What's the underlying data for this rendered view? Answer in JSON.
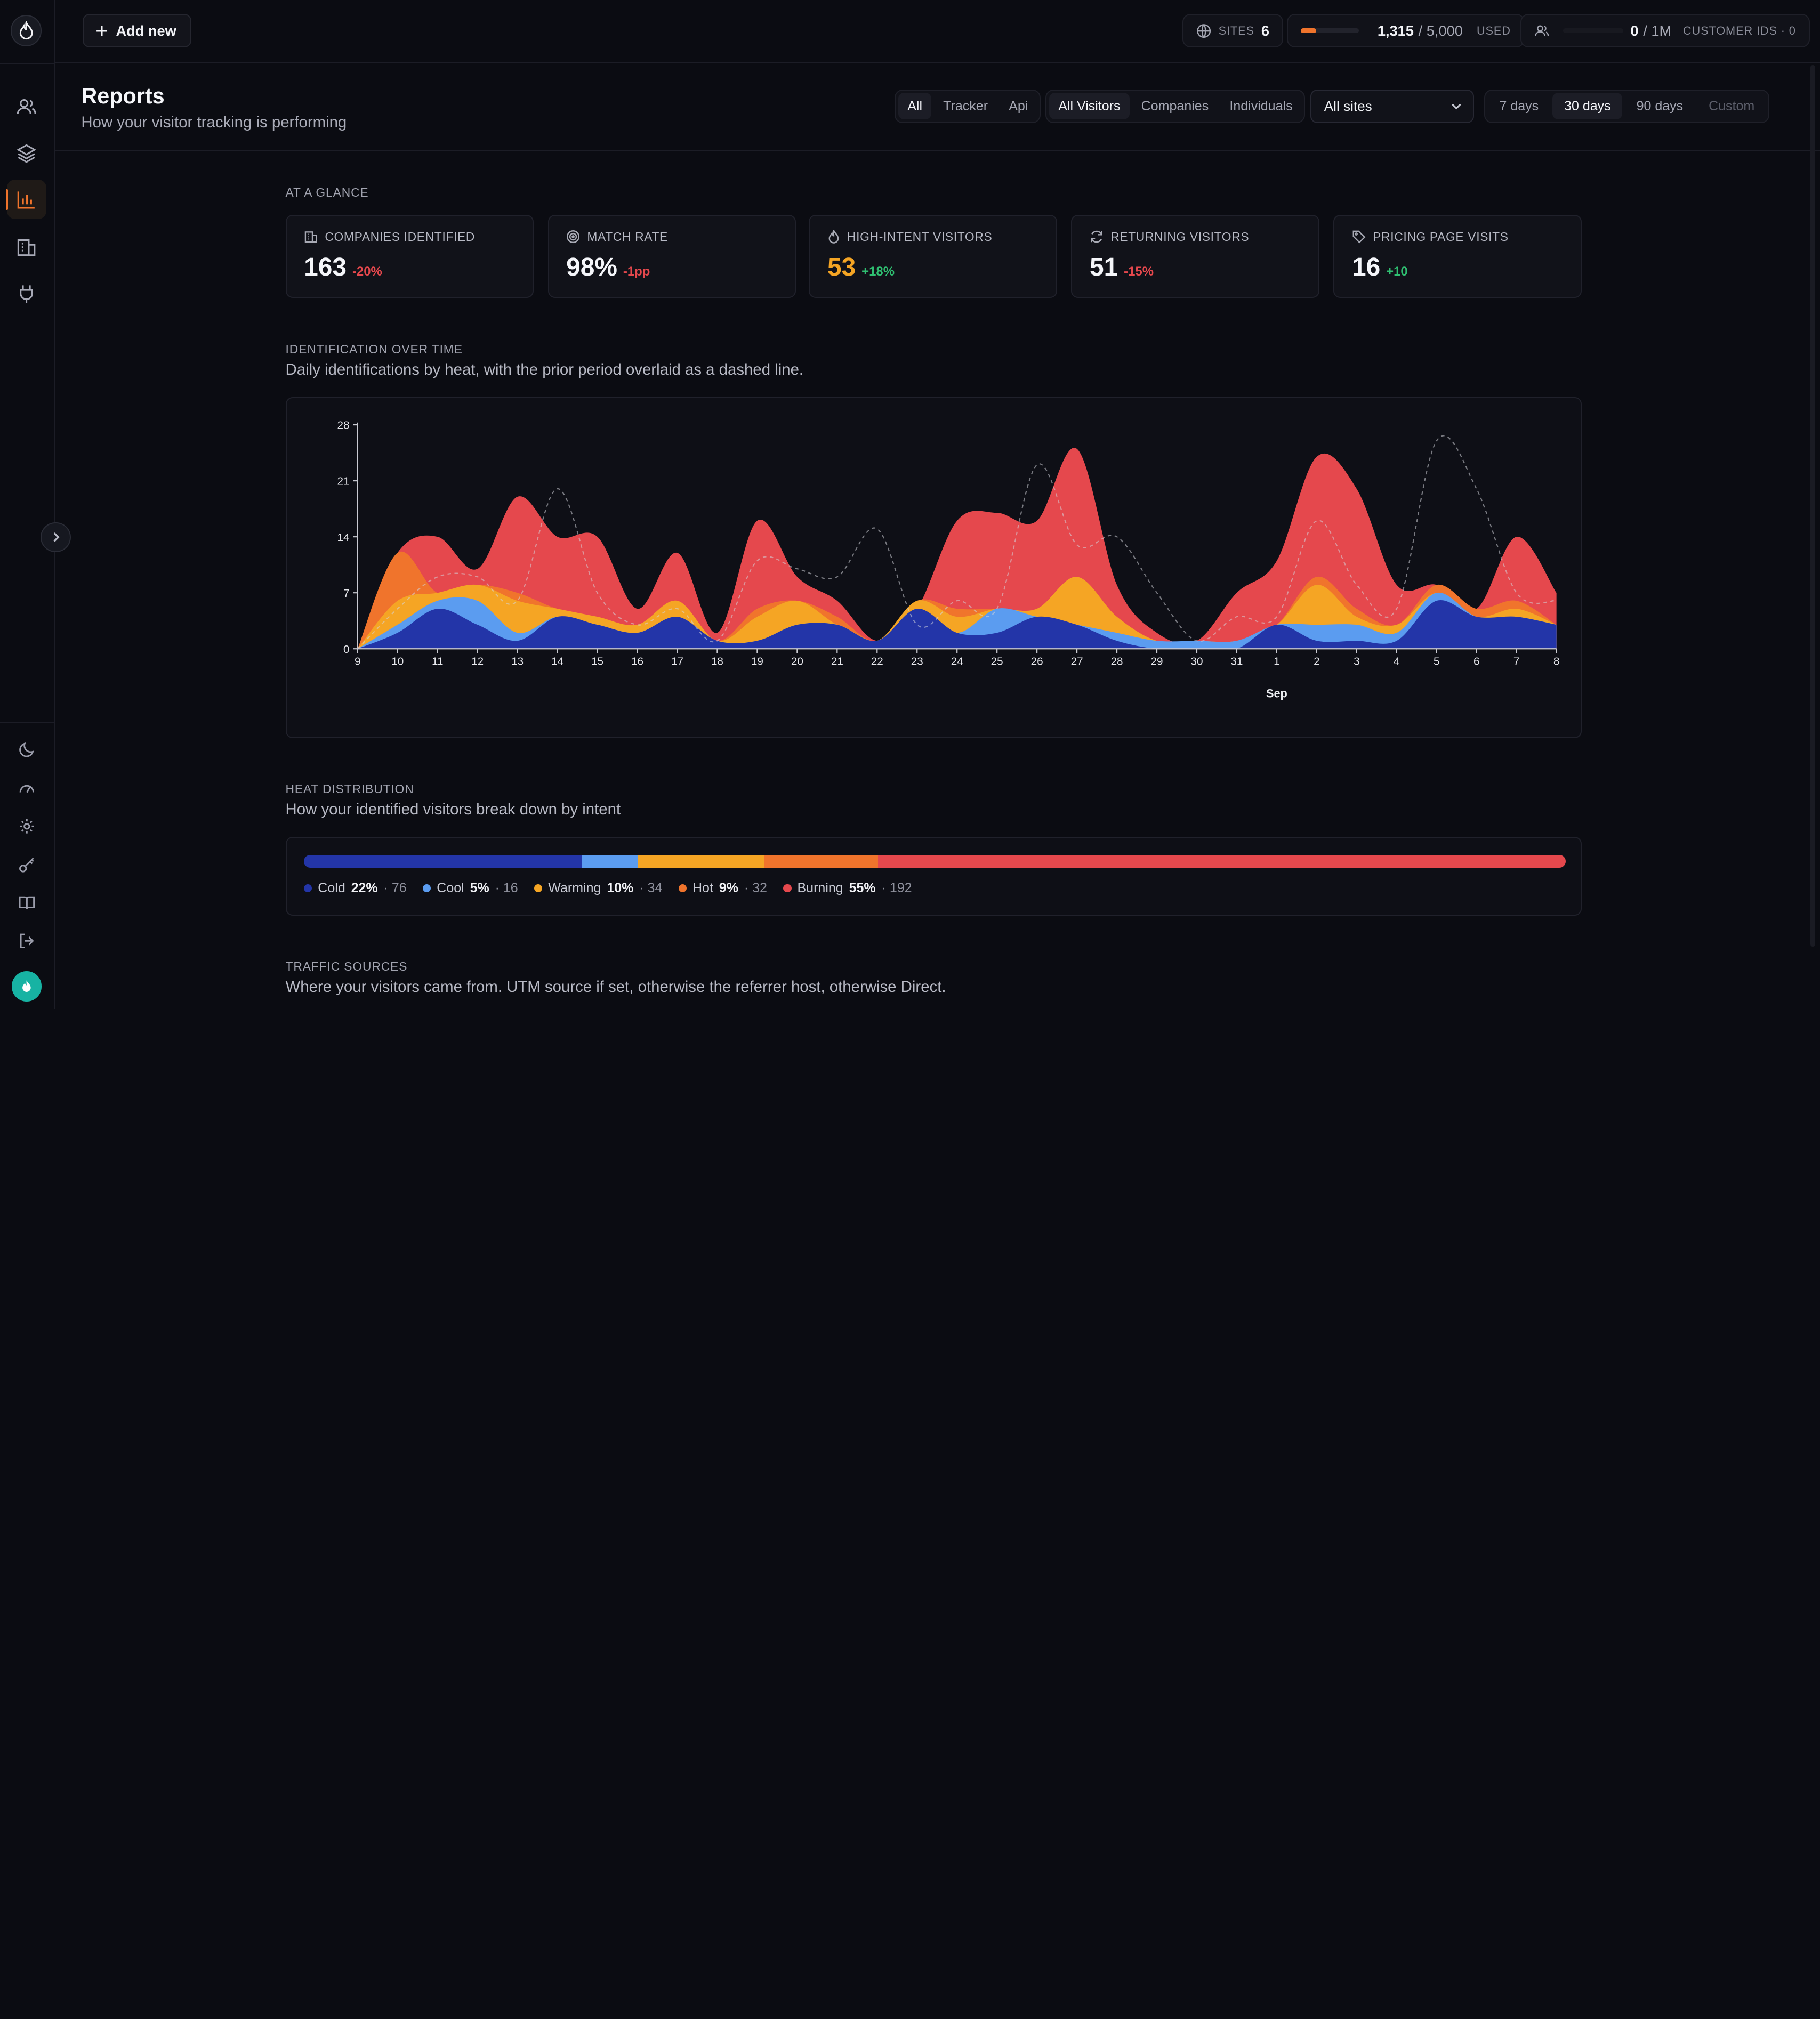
{
  "topbar": {
    "add_new": "Add new",
    "sites_label": "SITES",
    "sites_count": "6",
    "usage_used": "1,315",
    "usage_total": "/ 5,000",
    "usage_label": "USED",
    "usage_fraction": 0.263,
    "customers_used": "0",
    "customers_total": "/ 1M",
    "customers_label": "CUSTOMER IDS · 0"
  },
  "header": {
    "title": "Reports",
    "subtitle": "How your visitor tracking is performing",
    "source_filters": [
      "All",
      "Tracker",
      "Api"
    ],
    "source_active": "All",
    "audience_filters": [
      "All Visitors",
      "Companies",
      "Individuals"
    ],
    "audience_active": "All Visitors",
    "site_select": "All sites",
    "range_filters": [
      "7 days",
      "30 days",
      "90 days",
      "Custom"
    ],
    "range_active": "30 days"
  },
  "glance": {
    "label": "AT A GLANCE",
    "kpis": [
      {
        "label": "COMPANIES IDENTIFIED",
        "value": "163",
        "delta": "-20%",
        "trend": "neg",
        "icon": "building-icon"
      },
      {
        "label": "MATCH RATE",
        "value": "98%",
        "delta": "-1pp",
        "trend": "neg",
        "icon": "target-icon"
      },
      {
        "label": "HIGH-INTENT VISITORS",
        "value": "53",
        "delta": "+18%",
        "trend": "pos",
        "icon": "flame-icon"
      },
      {
        "label": "RETURNING VISITORS",
        "value": "51",
        "delta": "-15%",
        "trend": "neg",
        "icon": "refresh-icon"
      },
      {
        "label": "PRICING PAGE VISITS",
        "value": "16",
        "delta": "+10",
        "trend": "pos",
        "icon": "tag-icon"
      }
    ]
  },
  "identification": {
    "label": "IDENTIFICATION OVER TIME",
    "description": "Daily identifications by heat, with the prior period overlaid as a dashed line."
  },
  "chart_data": {
    "type": "area",
    "x": [
      "9",
      "10",
      "11",
      "12",
      "13",
      "14",
      "15",
      "16",
      "17",
      "18",
      "19",
      "20",
      "21",
      "22",
      "23",
      "24",
      "25",
      "26",
      "27",
      "28",
      "29",
      "30",
      "31",
      "1",
      "2",
      "3",
      "4",
      "5",
      "6",
      "7",
      "8"
    ],
    "xlabel": "Sep",
    "ylim": [
      0,
      28
    ],
    "yticks": [
      0,
      7,
      14,
      21,
      28
    ],
    "stacked": false,
    "series": [
      {
        "key": "burning",
        "color": "#e5484d",
        "values": [
          0,
          12,
          14,
          10,
          19,
          14,
          14,
          5,
          12,
          2,
          16,
          9,
          6,
          1,
          5,
          16,
          17,
          16,
          25,
          8,
          2,
          1,
          7,
          11,
          24,
          20,
          8,
          8,
          5,
          14,
          7
        ]
      },
      {
        "key": "hot",
        "color": "#f0742c",
        "values": [
          0,
          12,
          7,
          8,
          7,
          5,
          4,
          3,
          6,
          1,
          5,
          6,
          4,
          1,
          6,
          5,
          5,
          5,
          9,
          4,
          1,
          1,
          1,
          3,
          9,
          5,
          3,
          8,
          5,
          6,
          3
        ]
      },
      {
        "key": "warming",
        "color": "#f5a524",
        "values": [
          0,
          6,
          7,
          8,
          6,
          5,
          4,
          3,
          6,
          1,
          4,
          6,
          3,
          1,
          6,
          4,
          5,
          5,
          9,
          4,
          1,
          1,
          1,
          3,
          8,
          4,
          3,
          7,
          4,
          5,
          3
        ]
      },
      {
        "key": "cool",
        "color": "#5b9cf0",
        "values": [
          0,
          3,
          6,
          6,
          2,
          4,
          3,
          2,
          4,
          1,
          1,
          3,
          3,
          1,
          5,
          2,
          5,
          4,
          3,
          2,
          1,
          1,
          1,
          3,
          3,
          3,
          2,
          7,
          4,
          4,
          3
        ]
      },
      {
        "key": "cold",
        "color": "#2335a8",
        "values": [
          0,
          2,
          5,
          3,
          1,
          4,
          3,
          2,
          4,
          1,
          1,
          3,
          3,
          1,
          5,
          2,
          2,
          4,
          3,
          1,
          0,
          0,
          0,
          3,
          1,
          1,
          1,
          6,
          4,
          4,
          3
        ]
      }
    ],
    "prior_period": {
      "style": "dashed",
      "values": [
        0,
        5,
        9,
        9,
        6,
        20,
        7,
        3,
        5,
        1,
        11,
        10,
        9,
        15,
        3,
        6,
        5,
        23,
        13,
        14,
        7,
        1,
        4,
        4,
        16,
        8,
        5,
        26,
        20,
        7,
        6
      ]
    }
  },
  "heat": {
    "label": "HEAT DISTRIBUTION",
    "description": "How your identified visitors break down by intent",
    "segments": [
      {
        "name": "Cold",
        "pct": "22%",
        "count": "· 76",
        "share": 0.22,
        "color": "#2335a8"
      },
      {
        "name": "Cool",
        "pct": "5%",
        "count": "· 16",
        "share": 0.045,
        "color": "#5b9cf0"
      },
      {
        "name": "Warming",
        "pct": "10%",
        "count": "· 34",
        "share": 0.1,
        "color": "#f5a524"
      },
      {
        "name": "Hot",
        "pct": "9%",
        "count": "· 32",
        "share": 0.09,
        "color": "#f0742c"
      },
      {
        "name": "Burning",
        "pct": "55%",
        "count": "· 192",
        "share": 0.545,
        "color": "#e5484d"
      }
    ]
  },
  "traffic": {
    "label": "TRAFFIC SOURCES",
    "description": "Where your visitors came from. UTM source if set, otherwise the referrer host, otherwise Direct."
  },
  "colors": {
    "accent": "#f0742c",
    "negative": "#e5484d",
    "positive": "#2fbf71",
    "amber": "#f5a524"
  }
}
